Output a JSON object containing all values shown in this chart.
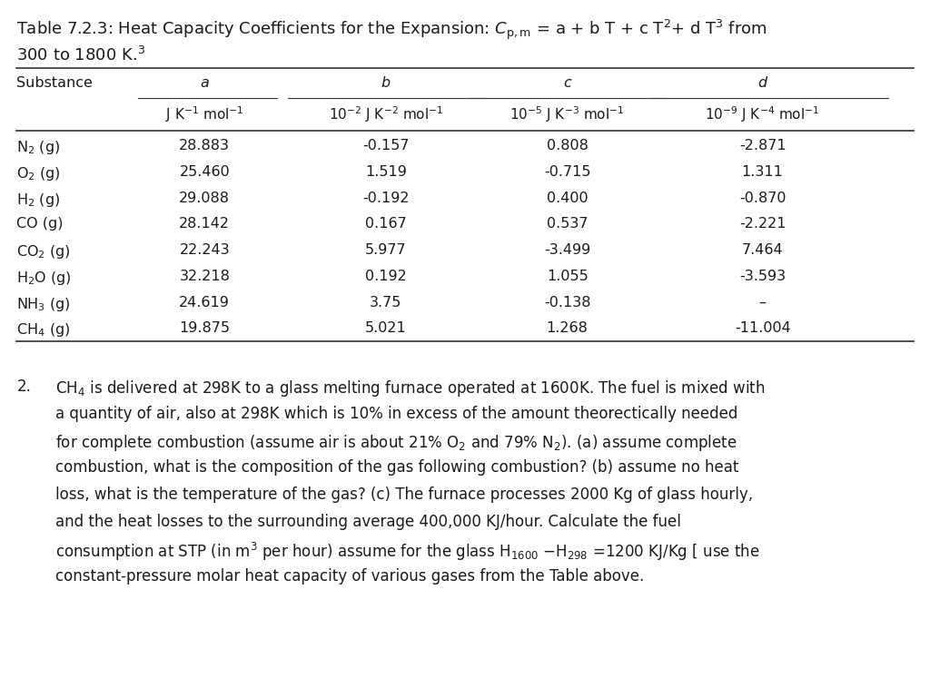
{
  "substances": [
    "N$_2$ (g)",
    "O$_2$ (g)",
    "H$_2$ (g)",
    "CO (g)",
    "CO$_2$ (g)",
    "H$_2$O (g)",
    "NH$_3$ (g)",
    "CH$_4$ (g)"
  ],
  "a_vals": [
    "28.883",
    "25.460",
    "29.088",
    "28.142",
    "22.243",
    "32.218",
    "24.619",
    "19.875"
  ],
  "b_vals": [
    "-0.157",
    "1.519",
    "-0.192",
    "0.167",
    "5.977",
    "0.192",
    "3.75",
    "5.021"
  ],
  "c_vals": [
    "0.808",
    "-0.715",
    "0.400",
    "0.537",
    "-3.499",
    "1.055",
    "-0.138",
    "1.268"
  ],
  "d_vals": [
    "-2.871",
    "1.311",
    "-0.870",
    "-2.221",
    "7.464",
    "-3.593",
    "–",
    "-11.004"
  ],
  "bg_color": "#ffffff",
  "text_color": "#1a1a1a",
  "title_fs": 13.0,
  "table_fs": 11.5,
  "header_fs": 11.5,
  "para_fs": 12.0
}
